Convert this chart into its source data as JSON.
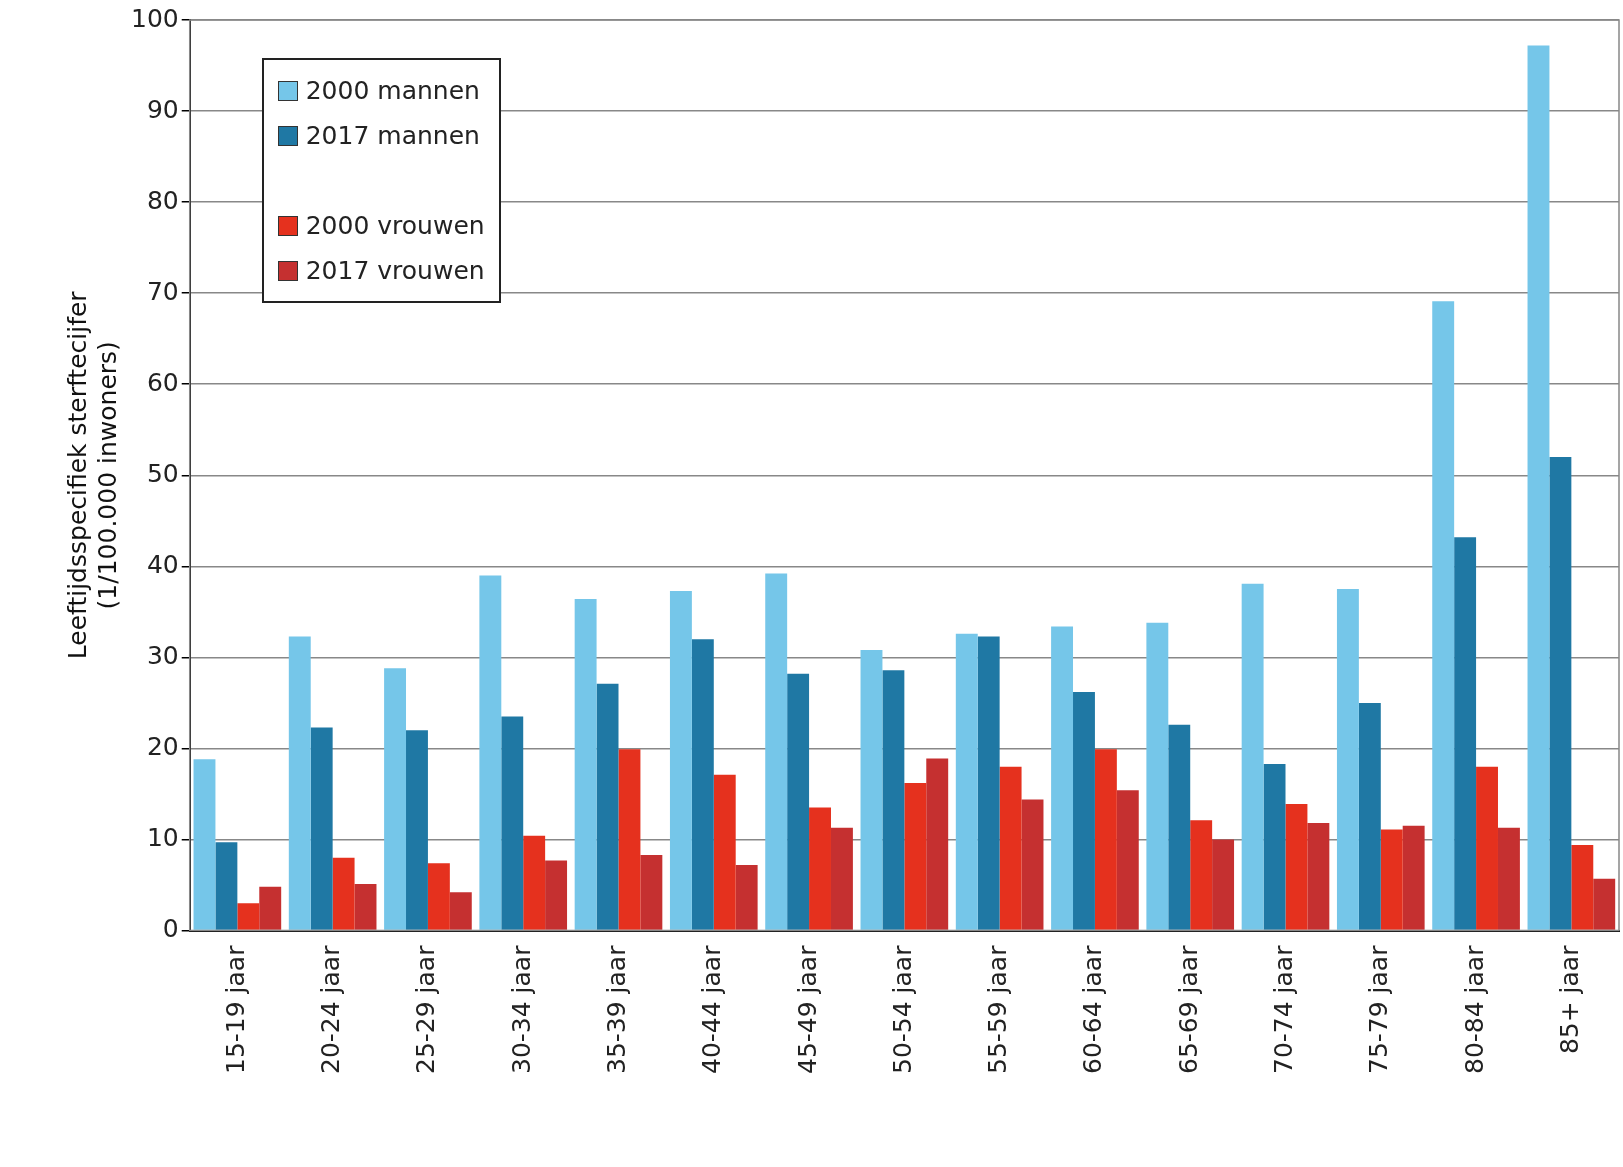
{
  "chart_data": {
    "type": "bar",
    "ylabel": "Leeftijdsspecifiek sterftecijfer\n(1/100.000 inwoners)",
    "categories": [
      "15-19 jaar",
      "20-24 jaar",
      "25-29 jaar",
      "30-34 jaar",
      "35-39 jaar",
      "40-44 jaar",
      "45-49 jaar",
      "50-54 jaar",
      "55-59 jaar",
      "60-64 jaar",
      "65-69 jaar",
      "70-74 jaar",
      "75-79 jaar",
      "80-84 jaar",
      "85+ jaar"
    ],
    "series": [
      {
        "name": "2000 mannen",
        "color": "#75c6e9",
        "values": [
          18.8,
          32.3,
          28.8,
          39.0,
          36.4,
          37.3,
          39.2,
          30.8,
          32.6,
          33.4,
          33.8,
          38.1,
          37.5,
          69.1,
          97.2
        ]
      },
      {
        "name": "2017 mannen",
        "color": "#1f78a4",
        "values": [
          9.7,
          22.3,
          22.0,
          23.5,
          27.1,
          32.0,
          28.2,
          28.6,
          32.3,
          26.2,
          22.6,
          18.3,
          25.0,
          43.2,
          52.0
        ]
      },
      {
        "name": "2000 vrouwen",
        "color": "#e5311e",
        "values": [
          3.0,
          8.0,
          7.4,
          10.4,
          19.9,
          17.1,
          13.5,
          16.2,
          18.0,
          19.9,
          12.1,
          13.9,
          11.1,
          18.0,
          9.4
        ]
      },
      {
        "name": "2017 vrouwen",
        "color": "#c53030",
        "values": [
          4.8,
          5.1,
          4.2,
          7.7,
          8.3,
          7.2,
          11.3,
          18.9,
          14.4,
          15.4,
          10.0,
          11.8,
          11.5,
          11.3,
          5.7
        ]
      }
    ],
    "ylim": [
      0,
      100
    ],
    "yticks": [
      0,
      10,
      20,
      30,
      40,
      50,
      60,
      70,
      80,
      90,
      100
    ],
    "grid": "y",
    "legend": "top left"
  }
}
